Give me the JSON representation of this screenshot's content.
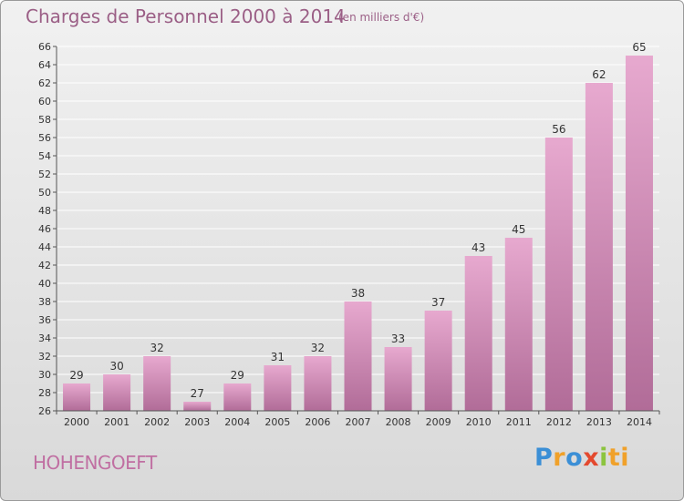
{
  "header": {
    "title": "Charges de Personnel 2000 à 2014",
    "unit": "(en milliers d'€)"
  },
  "footer": {
    "commune": "HOHENGOEFT",
    "brand_letters": [
      "P",
      "r",
      "o",
      "x",
      "i",
      "ti"
    ]
  },
  "colors": {
    "bar_top": "#e7a9cf",
    "bar_bottom": "#b16c98",
    "axis": "#555555",
    "grid_line": "#ffffff",
    "text": "#333333",
    "title": "#9b5f86"
  },
  "chart_data": {
    "type": "bar",
    "title": "Charges de Personnel 2000 à 2014",
    "xlabel": "",
    "ylabel": "",
    "categories": [
      "2000",
      "2001",
      "2002",
      "2003",
      "2004",
      "2005",
      "2006",
      "2007",
      "2008",
      "2009",
      "2010",
      "2011",
      "2012",
      "2013",
      "2014"
    ],
    "values": [
      29,
      30,
      32,
      27,
      29,
      31,
      32,
      38,
      33,
      37,
      43,
      45,
      56,
      62,
      65
    ],
    "ylim": [
      26,
      66
    ],
    "ytick_step": 2,
    "grid": true,
    "data_labels": true,
    "legend": "none"
  }
}
